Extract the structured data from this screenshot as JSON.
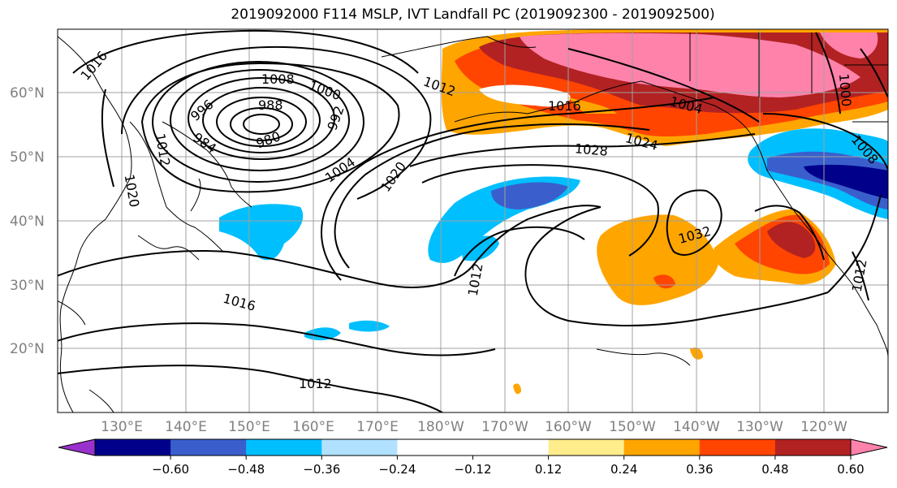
{
  "title": "2019092000 F114 MSLP, IVT Landfall PC (2019092300 - 2019092500)",
  "lat_labels": [
    "60°N",
    "50°N",
    "40°N",
    "30°N",
    "20°N"
  ],
  "lon_labels": [
    "130°E",
    "140°E",
    "150°E",
    "160°E",
    "170°E",
    "180°W",
    "170°W",
    "160°W",
    "150°W",
    "140°W",
    "130°W",
    "120°W"
  ],
  "colorbar": {
    "colors": [
      "#9932cc",
      "#00008b",
      "#3a5fcd",
      "#00bfff",
      "#b0e2ff",
      "#ffffff",
      "#ffffff",
      "#ffec8b",
      "#ffa500",
      "#ff4500",
      "#b22222",
      "#ff82ab"
    ],
    "tick_labels": [
      "−0.60",
      "−0.48",
      "−0.36",
      "−0.24",
      "−0.12",
      "0.12",
      "0.24",
      "0.36",
      "0.48",
      "0.60"
    ]
  },
  "isobar_labels": [
    "1016",
    "1008",
    "1000",
    "996",
    "988",
    "992",
    "984",
    "980",
    "1012",
    "1020",
    "1004",
    "1020",
    "1012",
    "1016",
    "1004",
    "1028",
    "1024",
    "1000",
    "1008",
    "1032",
    "1012",
    "1012",
    "1016",
    "1012"
  ]
}
